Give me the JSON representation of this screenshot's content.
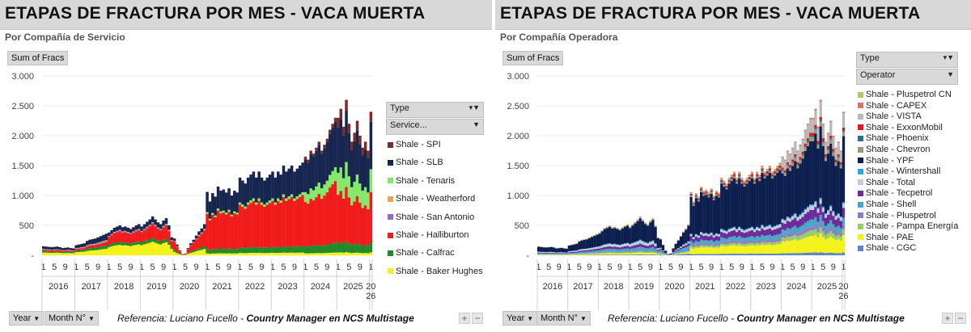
{
  "panels": [
    {
      "title": "ETAPAS DE FRACTURA POR MES -  VACA MUERTA",
      "subtitle": "Por Compañía de Servicio",
      "value_button": "Sum of Fracs",
      "legend_header": "Type",
      "legend_field": "Service...",
      "filter_year": "Year",
      "filter_month": "Month N°",
      "reference_prefix": "Referencia:  Luciano Fucello -",
      "reference_bold": "Country Manager en NCS Multistage"
    },
    {
      "title": "ETAPAS DE FRACTURA POR MES -  VACA MUERTA",
      "subtitle": "Por Compañía Operadora",
      "value_button": "Sum of Fracs",
      "legend_header": "Type",
      "legend_field": "Operator",
      "filter_year": "Year",
      "filter_month": "Month N°",
      "reference_prefix": "Referencia:  Luciano Fucello -",
      "reference_bold": "Country Manager en NCS Multistage"
    }
  ],
  "chart_data": [
    {
      "type": "bar",
      "stacked": true,
      "title": "ETAPAS DE FRACTURA POR MES -  VACA MUERTA",
      "subtitle": "Por Compañía de Servicio",
      "ylabel": "Sum of Fracs",
      "ylim": [
        0,
        3000
      ],
      "yticks": [
        "-",
        "500",
        "1.000",
        "1.500",
        "2.000",
        "2.500",
        "3.000"
      ],
      "ytick_values": [
        0,
        500,
        1000,
        1500,
        2000,
        2500,
        3000
      ],
      "years": [
        "2016",
        "2017",
        "2018",
        "2019",
        "2020",
        "2021",
        "2022",
        "2023",
        "2024",
        "2025",
        "20\n26"
      ],
      "months_per_year": [
        12,
        12,
        12,
        12,
        12,
        12,
        12,
        12,
        12,
        12,
        1
      ],
      "month_tick_labels": [
        "1",
        "5",
        "9"
      ],
      "totals_by_year": {
        "2016": [
          150,
          145,
          140,
          135,
          140,
          145,
          135,
          120,
          125,
          130,
          120,
          115
        ],
        "2017": [
          170,
          180,
          190,
          200,
          240,
          260,
          270,
          280,
          300,
          320,
          340,
          360
        ],
        "2018": [
          380,
          420,
          460,
          480,
          500,
          470,
          480,
          460,
          440,
          470,
          500,
          520
        ],
        "2019": [
          480,
          520,
          560,
          600,
          650,
          600,
          550,
          520,
          580,
          620,
          500,
          300
        ],
        "2020": [
          280,
          180,
          80,
          20,
          30,
          120,
          200,
          260,
          330,
          400,
          450,
          520
        ],
        "2021": [
          1060,
          900,
          1040,
          980,
          1150,
          1080,
          1100,
          1050,
          1120,
          1000,
          1080,
          1050
        ],
        "2022": [
          1300,
          1250,
          1200,
          1300,
          1350,
          1400,
          1300,
          1400,
          1300,
          1250,
          1300,
          1350
        ],
        "2023": [
          1400,
          1300,
          1400,
          1350,
          1500,
          1400,
          1450,
          1500,
          1400,
          1450,
          1500,
          1550
        ],
        "2024": [
          1650,
          1600,
          1750,
          1700,
          1800,
          1900,
          1750,
          1850,
          1950,
          2100,
          2200,
          2300
        ],
        "2025": [
          2300,
          2450,
          2150,
          2600,
          2200,
          1900,
          2050,
          2250,
          2000,
          1800,
          1900,
          1750
        ],
        "20\n26": [
          2400
        ]
      },
      "series": [
        {
          "name": "Shale - SPI",
          "color": "#7b2c2c"
        },
        {
          "name": "Shale - SLB",
          "color": "#17264f"
        },
        {
          "name": "Shale - Tenaris",
          "color": "#84e86a"
        },
        {
          "name": "Shale - Weatherford",
          "color": "#f4a25a"
        },
        {
          "name": "Shale - San Antonio",
          "color": "#8e6bc2"
        },
        {
          "name": "Shale - Halliburton",
          "color": "#f11b1b"
        },
        {
          "name": "Shale - Calfrac",
          "color": "#1f8a2a"
        },
        {
          "name": "Shale - Baker Hughes",
          "color": "#f5f21b"
        }
      ]
    },
    {
      "type": "bar",
      "stacked": true,
      "title": "ETAPAS DE FRACTURA POR MES -  VACA MUERTA",
      "subtitle": "Por Compañía Operadora",
      "ylabel": "Sum of Fracs",
      "ylim": [
        0,
        3000
      ],
      "yticks": [
        "-",
        "500",
        "1.000",
        "1.500",
        "2.000",
        "2.500",
        "3.000"
      ],
      "ytick_values": [
        0,
        500,
        1000,
        1500,
        2000,
        2500,
        3000
      ],
      "years": [
        "2016",
        "2017",
        "2018",
        "2019",
        "2020",
        "2021",
        "2022",
        "2023",
        "2024",
        "2025",
        "20\n26"
      ],
      "months_per_year": [
        12,
        12,
        12,
        12,
        12,
        12,
        12,
        12,
        12,
        12,
        1
      ],
      "month_tick_labels": [
        "1",
        "5",
        "9"
      ],
      "totals_by_year": {
        "2016": [
          150,
          145,
          140,
          135,
          140,
          145,
          135,
          120,
          125,
          130,
          120,
          115
        ],
        "2017": [
          170,
          180,
          190,
          200,
          240,
          260,
          270,
          280,
          300,
          320,
          340,
          360
        ],
        "2018": [
          380,
          420,
          460,
          480,
          500,
          470,
          480,
          460,
          440,
          470,
          500,
          520
        ],
        "2019": [
          480,
          520,
          560,
          600,
          650,
          600,
          550,
          520,
          580,
          620,
          500,
          300
        ],
        "2020": [
          280,
          180,
          80,
          20,
          30,
          120,
          200,
          260,
          330,
          400,
          450,
          520
        ],
        "2021": [
          1060,
          900,
          1040,
          980,
          1150,
          1080,
          1100,
          1050,
          1120,
          1000,
          1080,
          1050
        ],
        "2022": [
          1300,
          1250,
          1200,
          1300,
          1350,
          1400,
          1300,
          1400,
          1300,
          1250,
          1300,
          1350
        ],
        "2023": [
          1400,
          1300,
          1400,
          1350,
          1500,
          1400,
          1450,
          1500,
          1400,
          1450,
          1500,
          1550
        ],
        "2024": [
          1650,
          1600,
          1750,
          1700,
          1800,
          1900,
          1750,
          1850,
          1950,
          2100,
          2200,
          2300
        ],
        "2025": [
          2300,
          2450,
          2150,
          2600,
          2200,
          1900,
          2050,
          2250,
          2000,
          1800,
          1900,
          1750
        ],
        "20\n26": [
          2400
        ]
      },
      "series": [
        {
          "name": "Shale - Pluspetrol CN",
          "color": "#a9c96a"
        },
        {
          "name": "Shale - CAPEX",
          "color": "#d9756a"
        },
        {
          "name": "Shale - VISTA",
          "color": "#b9b9b9"
        },
        {
          "name": "Shale - ExxonMobil",
          "color": "#e6161b"
        },
        {
          "name": "Shale - Phoenix",
          "color": "#2d6e8e"
        },
        {
          "name": "Shale - Chevron",
          "color": "#9a9a7a"
        },
        {
          "name": "Shale - YPF",
          "color": "#0d1f4f"
        },
        {
          "name": "Shale - Wintershall",
          "color": "#2fa8e0"
        },
        {
          "name": "Shale - Total",
          "color": "#c6cbd6"
        },
        {
          "name": "Shale - Tecpetrol",
          "color": "#6b2a9a"
        },
        {
          "name": "Shale - Shell",
          "color": "#4aa6c6"
        },
        {
          "name": "Shale - Pluspetrol",
          "color": "#8d7cc4"
        },
        {
          "name": "Shale - Pampa Energía",
          "color": "#9ccc6a"
        },
        {
          "name": "Shale - PAE",
          "color": "#f5f21b"
        },
        {
          "name": "Shale - CGC",
          "color": "#5b86c8"
        }
      ]
    }
  ]
}
